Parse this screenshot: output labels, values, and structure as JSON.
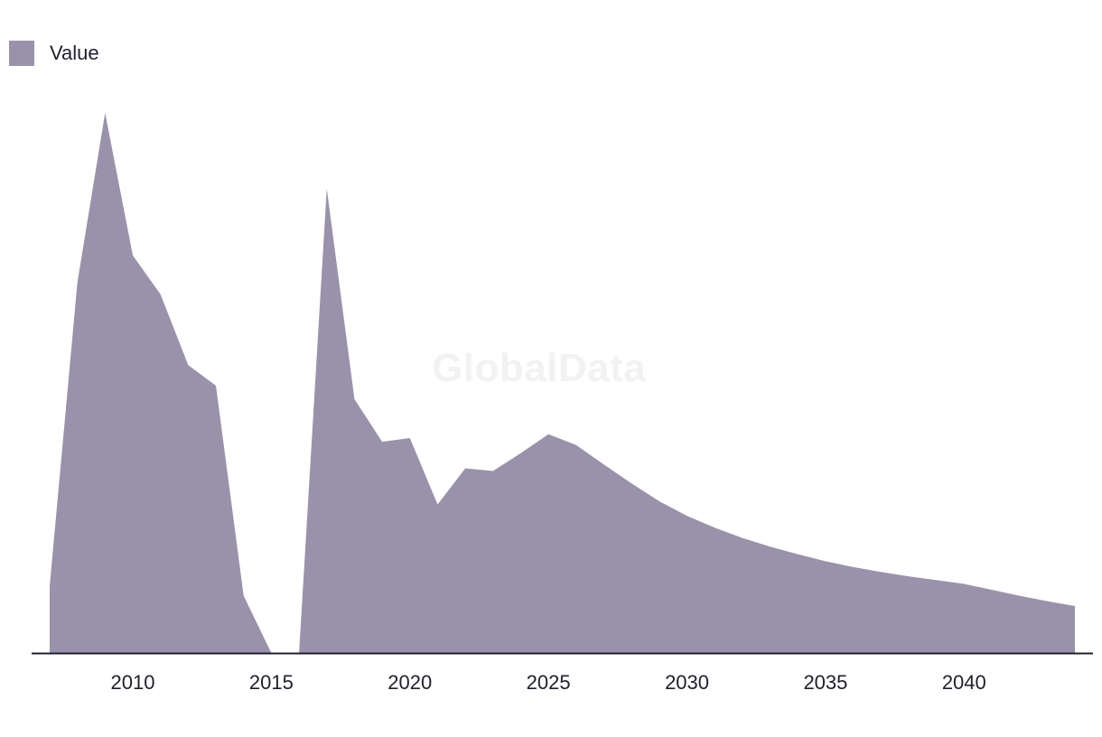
{
  "legend": {
    "label": "Value",
    "color": "#9a92aa"
  },
  "watermark": "GlobalData",
  "chart_data": {
    "type": "area",
    "title": "",
    "xlabel": "",
    "ylabel": "",
    "grid": false,
    "legend_position": "top-left",
    "series": [
      {
        "name": "Value",
        "color": "#9a92aa",
        "x": [
          2007,
          2008,
          2009,
          2010,
          2011,
          2012,
          2013,
          2014,
          2015,
          2016,
          2017,
          2018,
          2019,
          2020,
          2021,
          2022,
          2023,
          2024,
          2025,
          2026,
          2027,
          2028,
          2029,
          2030,
          2031,
          2032,
          2033,
          2034,
          2035,
          2036,
          2037,
          2038,
          2039,
          2040,
          2041,
          2042,
          2043,
          2044
        ],
        "values": [
          12.4,
          68.6,
          100,
          73.6,
          66.4,
          53.3,
          49.5,
          10.6,
          0,
          0,
          86,
          47,
          39.1,
          39.8,
          27.5,
          34.2,
          33.7,
          37,
          40.5,
          38.5,
          34.9,
          31.4,
          28.1,
          25.4,
          23.2,
          21.3,
          19.7,
          18.3,
          17,
          15.9,
          15,
          14.2,
          13.5,
          12.8,
          11.7,
          10.6,
          9.6,
          8.7
        ]
      }
    ],
    "xticks": [
      2010,
      2015,
      2020,
      2025,
      2030,
      2035,
      2040
    ],
    "xlim": [
      2007,
      2044
    ],
    "ylim": [
      0,
      100
    ]
  }
}
